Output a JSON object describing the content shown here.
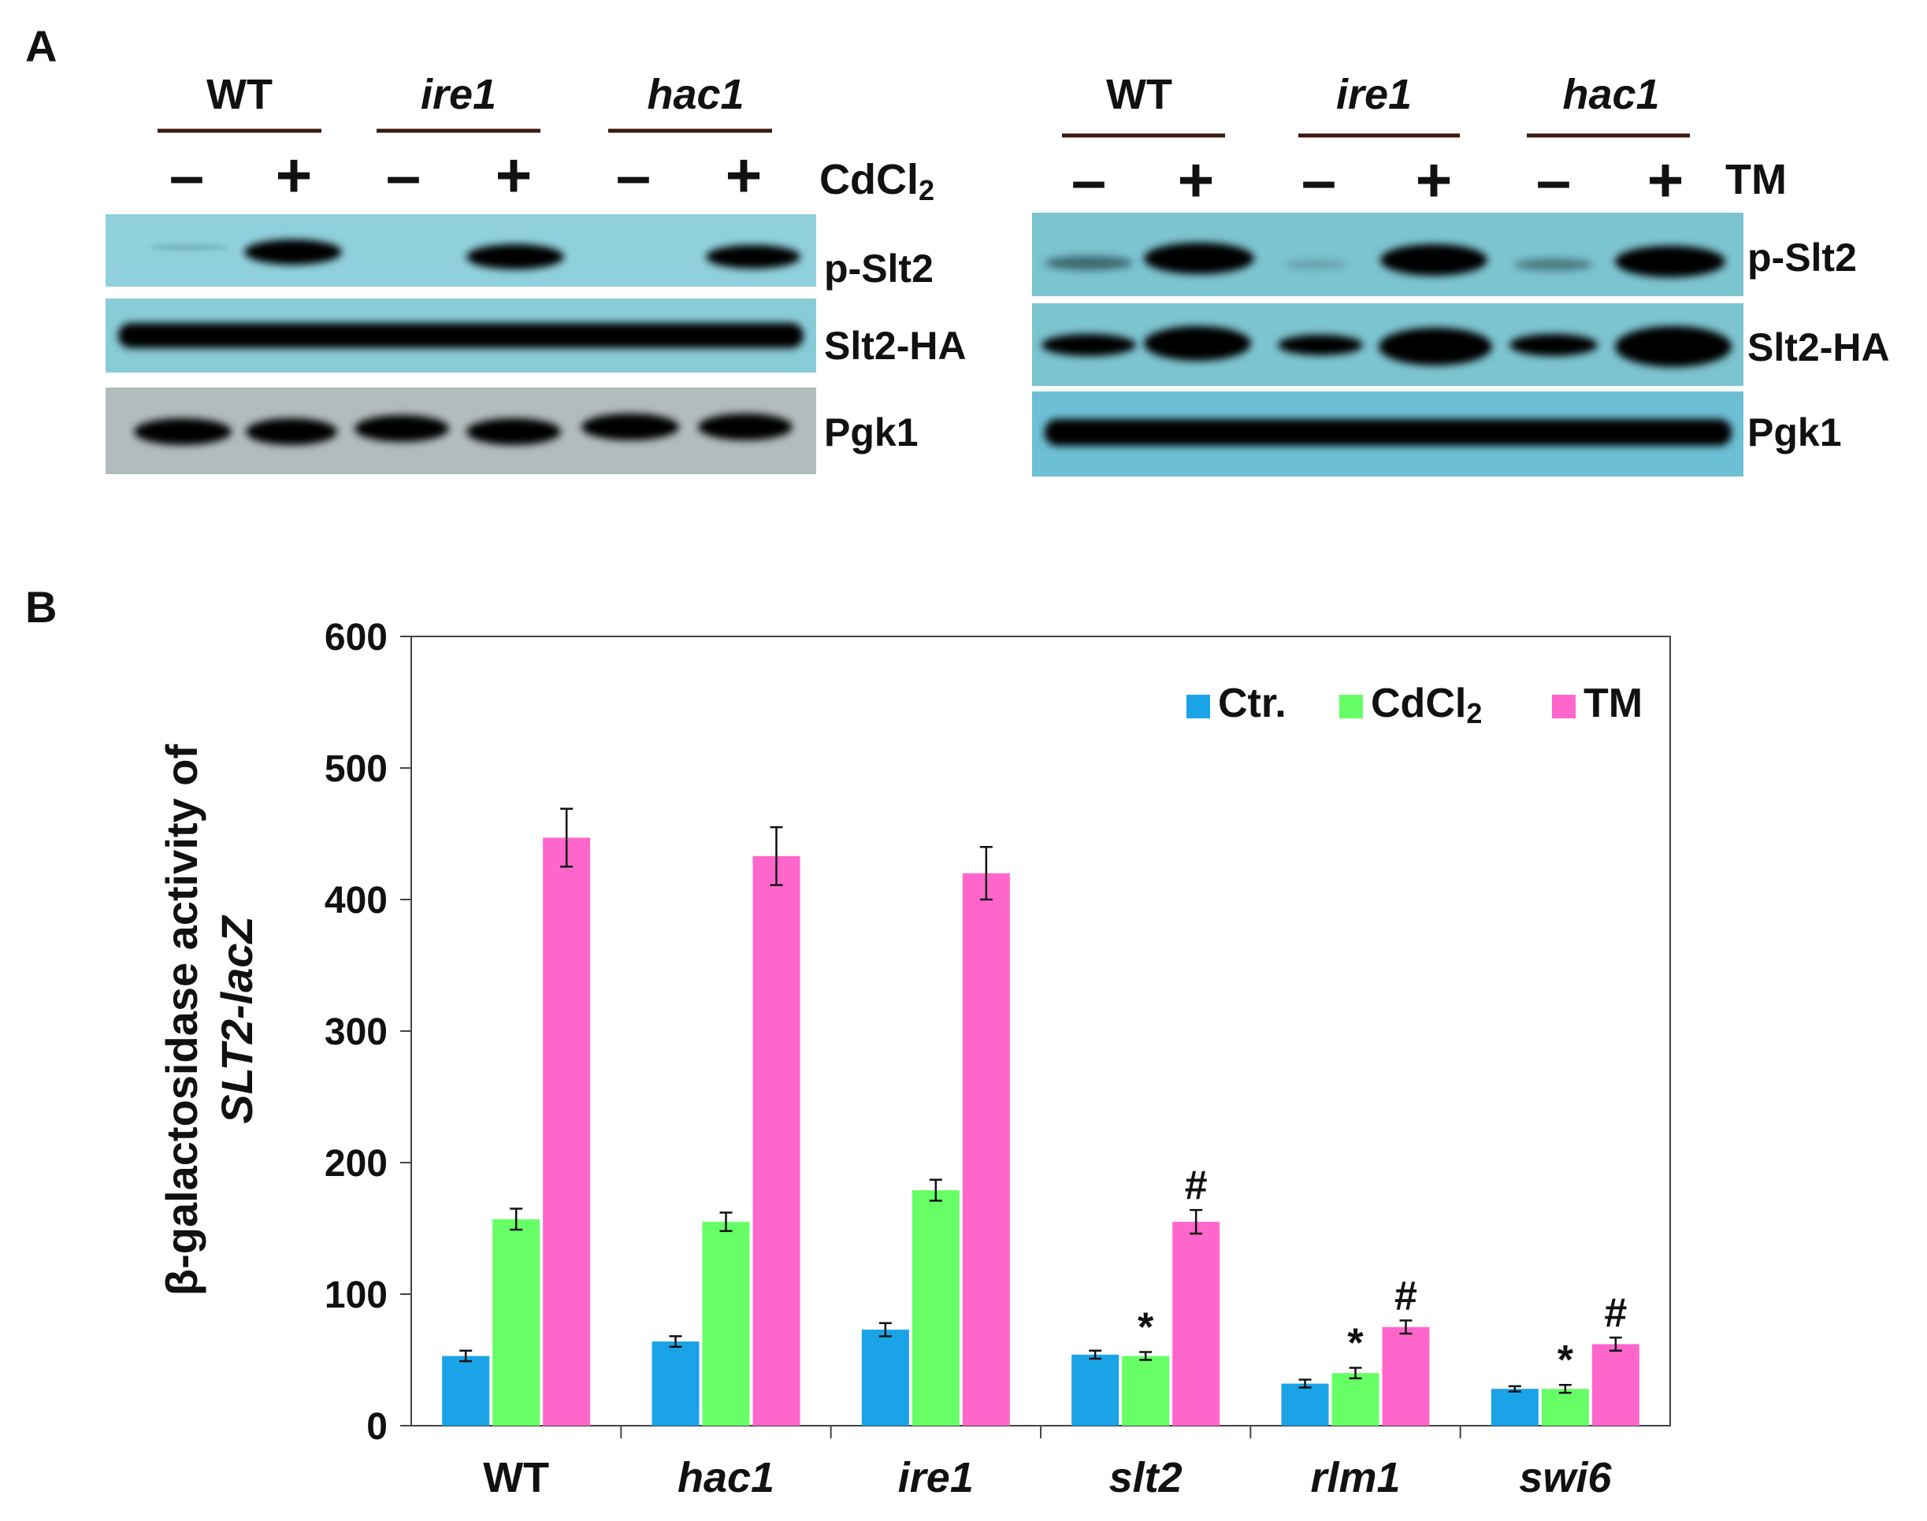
{
  "panel_a": {
    "label": "A",
    "left_blot": {
      "groups": [
        {
          "label": "WT",
          "italic": false
        },
        {
          "label": "ire1",
          "italic": true
        },
        {
          "label": "hac1",
          "italic": true
        }
      ],
      "lanes": [
        "–",
        "+",
        "–",
        "+",
        "–",
        "+"
      ],
      "treatment": "CdCl",
      "treatment_sub": "2",
      "rows": [
        "p-Slt2",
        "Slt2-HA",
        "Pgk1"
      ]
    },
    "right_blot": {
      "groups": [
        {
          "label": "WT",
          "italic": false
        },
        {
          "label": "ire1",
          "italic": true
        },
        {
          "label": "hac1",
          "italic": true
        }
      ],
      "lanes": [
        "–",
        "+",
        "–",
        "+",
        "–",
        "+"
      ],
      "treatment": "TM",
      "rows": [
        "p-Slt2",
        "Slt2-HA",
        "Pgk1"
      ]
    }
  },
  "panel_b": {
    "label": "B",
    "chart_data": {
      "type": "bar",
      "ylabel_line1": "β-galactosidase activity of",
      "ylabel_line2": "SLT2-lacZ",
      "ylim": [
        0,
        600
      ],
      "yticks": [
        "0",
        "100",
        "200",
        "300",
        "400",
        "500",
        "600"
      ],
      "categories": [
        "WT",
        "hac1",
        "ire1",
        "slt2",
        "rlm1",
        "swi6"
      ],
      "categories_italic": [
        false,
        true,
        true,
        true,
        true,
        true
      ],
      "legend_position": "top-right",
      "series": [
        {
          "name": "Ctr.",
          "color": "#1aa3e6",
          "values": [
            53,
            64,
            73,
            54,
            32,
            28
          ],
          "errors": [
            4,
            4,
            5,
            3,
            3,
            2
          ],
          "marks": [
            "",
            "",
            "",
            "",
            "",
            ""
          ]
        },
        {
          "name": "CdCl",
          "name_sub": "2",
          "color": "#66ff66",
          "values": [
            157,
            155,
            179,
            53,
            40,
            28
          ],
          "errors": [
            8,
            7,
            8,
            3,
            4,
            3
          ],
          "marks": [
            "",
            "",
            "",
            "*",
            "*",
            "*"
          ]
        },
        {
          "name": "TM",
          "color": "#ff66cc",
          "values": [
            447,
            433,
            420,
            155,
            75,
            62
          ],
          "errors": [
            22,
            22,
            20,
            9,
            5,
            5
          ],
          "marks": [
            "",
            "",
            "",
            "#",
            "#",
            "#"
          ]
        }
      ]
    }
  }
}
